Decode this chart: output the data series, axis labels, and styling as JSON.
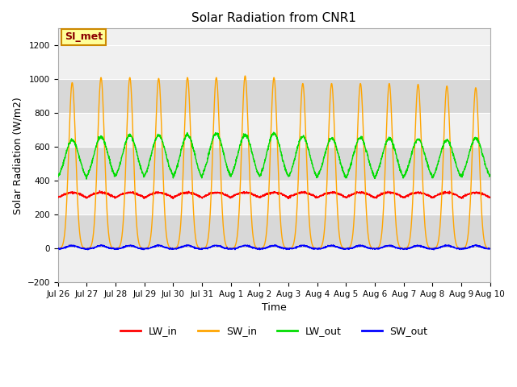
{
  "title": "Solar Radiation from CNR1",
  "xlabel": "Time",
  "ylabel": "Solar Radiation (W/m2)",
  "ylim": [
    -200,
    1300
  ],
  "yticks": [
    -200,
    0,
    200,
    400,
    600,
    800,
    1000,
    1200
  ],
  "x_labels": [
    "Jul 26",
    "Jul 27",
    "Jul 28",
    "Jul 29",
    "Jul 30",
    "Jul 31",
    "Aug 1",
    "Aug 2",
    "Aug 3",
    "Aug 4",
    "Aug 5",
    "Aug 6",
    "Aug 7",
    "Aug 8",
    "Aug 9",
    "Aug 10"
  ],
  "num_days": 15,
  "points_per_day": 144,
  "lw_in_base": 300,
  "lw_in_day_bump": 30,
  "sw_in_peak": 1000,
  "lw_out_base": 390,
  "lw_out_peak": 670,
  "sw_out_peak": 20,
  "colors": {
    "LW_in": "#ff0000",
    "SW_in": "#ffa500",
    "LW_out": "#00dd00",
    "SW_out": "#0000ff"
  },
  "plot_bg_light": "#f0f0f0",
  "plot_bg_dark": "#d8d8d8",
  "fig_bg": "#ffffff",
  "annotation_text": "SI_met",
  "annotation_bg": "#ffff99",
  "annotation_border": "#cc8800",
  "legend_labels": [
    "LW_in",
    "SW_in",
    "LW_out",
    "SW_out"
  ]
}
